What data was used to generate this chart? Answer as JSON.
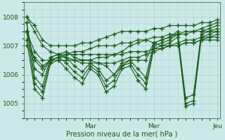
{
  "xlabel": "Pression niveau de la mer( hPa )",
  "bg_color": "#cde8e8",
  "line_color": "#1a5c1a",
  "marker": "+",
  "markersize": 4,
  "linewidth": 0.8,
  "ylim": [
    1004.5,
    1008.5
  ],
  "yticks": [
    1005,
    1006,
    1007,
    1008
  ],
  "xlim": [
    -1,
    73
  ],
  "xtick_positions": [
    24,
    48,
    72
  ],
  "xtick_labels": [
    "Mar",
    "Mer",
    "Jeu"
  ],
  "grid_color": "#a8cccc",
  "xlabel_fontsize": 7,
  "tick_fontsize": 6.5,
  "series": [
    [
      0,
      1008.0,
      3,
      1007.7,
      6,
      1007.2,
      9,
      1007.0,
      12,
      1007.0,
      15,
      1007.0,
      18,
      1007.0,
      21,
      1007.1,
      24,
      1007.1,
      27,
      1007.2,
      30,
      1007.3,
      33,
      1007.4,
      36,
      1007.5,
      39,
      1007.5,
      42,
      1007.5,
      45,
      1007.5,
      48,
      1007.6,
      51,
      1007.6,
      54,
      1007.7,
      57,
      1007.7,
      60,
      1007.7,
      63,
      1007.7,
      66,
      1007.8,
      69,
      1007.8,
      72,
      1007.9
    ],
    [
      0,
      1008.0,
      3,
      1007.5,
      6,
      1007.0,
      9,
      1006.8,
      12,
      1006.7,
      15,
      1006.7,
      18,
      1006.8,
      21,
      1006.8,
      24,
      1006.9,
      27,
      1007.0,
      30,
      1007.0,
      33,
      1007.0,
      36,
      1007.1,
      39,
      1007.1,
      42,
      1007.2,
      45,
      1007.2,
      48,
      1007.3,
      51,
      1007.3,
      54,
      1007.4,
      57,
      1007.4,
      60,
      1007.4,
      63,
      1007.5,
      66,
      1007.5,
      69,
      1007.5,
      72,
      1007.5
    ],
    [
      0,
      1007.5,
      3,
      1006.8,
      6,
      1006.5,
      9,
      1006.5,
      12,
      1006.6,
      15,
      1006.7,
      18,
      1006.7,
      21,
      1006.7,
      24,
      1006.7,
      27,
      1006.7,
      30,
      1006.7,
      33,
      1006.7,
      36,
      1006.7,
      39,
      1006.8,
      42,
      1006.8,
      45,
      1006.8,
      48,
      1006.9,
      51,
      1006.9,
      54,
      1007.0,
      57,
      1007.0,
      60,
      1007.1,
      63,
      1007.1,
      66,
      1007.2,
      69,
      1007.2,
      72,
      1007.2
    ],
    [
      0,
      1007.5,
      3,
      1006.5,
      6,
      1006.2,
      9,
      1006.5,
      12,
      1006.6,
      15,
      1006.6,
      18,
      1006.5,
      21,
      1006.4,
      24,
      1006.4,
      27,
      1006.4,
      30,
      1006.4,
      33,
      1006.4,
      36,
      1006.5,
      39,
      1006.6,
      42,
      1006.6,
      45,
      1006.7,
      48,
      1006.8,
      51,
      1006.9,
      54,
      1007.0,
      57,
      1007.1,
      60,
      1007.2,
      63,
      1007.2,
      66,
      1007.3,
      69,
      1007.3,
      72,
      1007.3
    ],
    [
      0,
      1007.0,
      3,
      1006.6,
      6,
      1006.3,
      9,
      1006.5,
      12,
      1006.5,
      15,
      1006.5,
      18,
      1006.5,
      21,
      1006.5,
      24,
      1006.5,
      27,
      1006.6,
      30,
      1006.6,
      33,
      1006.7,
      36,
      1006.8,
      39,
      1007.0,
      42,
      1007.1,
      45,
      1007.2,
      48,
      1007.1,
      51,
      1007.0,
      54,
      1007.0,
      57,
      1007.0,
      60,
      1007.1,
      63,
      1007.1,
      66,
      1007.2,
      69,
      1007.3,
      72,
      1007.4
    ],
    [
      0,
      1007.8,
      3,
      1006.2,
      6,
      1006.0,
      9,
      1006.6,
      12,
      1006.7,
      15,
      1006.8,
      18,
      1006.6,
      21,
      1006.5,
      24,
      1006.5,
      27,
      1006.4,
      30,
      1006.3,
      33,
      1006.0,
      36,
      1006.3,
      39,
      1006.5,
      42,
      1006.5,
      45,
      1006.5,
      48,
      1007.1,
      51,
      1007.2,
      54,
      1007.3,
      57,
      1007.4,
      60,
      1007.5,
      63,
      1007.5,
      66,
      1007.6,
      69,
      1007.7,
      72,
      1007.8
    ],
    [
      0,
      1007.8,
      3,
      1005.9,
      6,
      1005.6,
      9,
      1006.6,
      12,
      1006.7,
      15,
      1006.6,
      18,
      1006.3,
      21,
      1006.1,
      24,
      1006.4,
      27,
      1006.2,
      30,
      1005.8,
      33,
      1006.0,
      36,
      1006.4,
      39,
      1006.5,
      42,
      1006.2,
      45,
      1005.9,
      48,
      1007.1,
      51,
      1007.2,
      54,
      1007.3,
      57,
      1007.5,
      60,
      1005.2,
      63,
      1005.3,
      66,
      1007.5,
      69,
      1007.6,
      72,
      1007.7
    ],
    [
      0,
      1007.5,
      3,
      1005.7,
      6,
      1005.4,
      9,
      1006.5,
      12,
      1006.6,
      15,
      1006.4,
      18,
      1006.1,
      21,
      1005.9,
      24,
      1006.3,
      27,
      1006.1,
      30,
      1005.6,
      33,
      1005.8,
      36,
      1006.3,
      39,
      1006.4,
      42,
      1006.0,
      45,
      1005.7,
      48,
      1007.0,
      51,
      1007.1,
      54,
      1007.2,
      57,
      1007.4,
      60,
      1005.0,
      63,
      1005.1,
      66,
      1007.4,
      69,
      1007.5,
      72,
      1007.6
    ],
    [
      0,
      1007.2,
      3,
      1005.5,
      6,
      1005.2,
      9,
      1006.4,
      12,
      1006.5,
      15,
      1006.2,
      18,
      1005.9,
      21,
      1005.7,
      24,
      1006.2,
      27,
      1006.0,
      30,
      1005.4,
      33,
      1005.6,
      36,
      1006.2,
      39,
      1006.3,
      42,
      1005.8,
      45,
      1005.5,
      48,
      1006.9,
      51,
      1007.0,
      54,
      1007.1,
      57,
      1007.3,
      60,
      1004.9,
      63,
      1005.0,
      66,
      1007.3,
      69,
      1007.4,
      72,
      1007.5
    ]
  ]
}
